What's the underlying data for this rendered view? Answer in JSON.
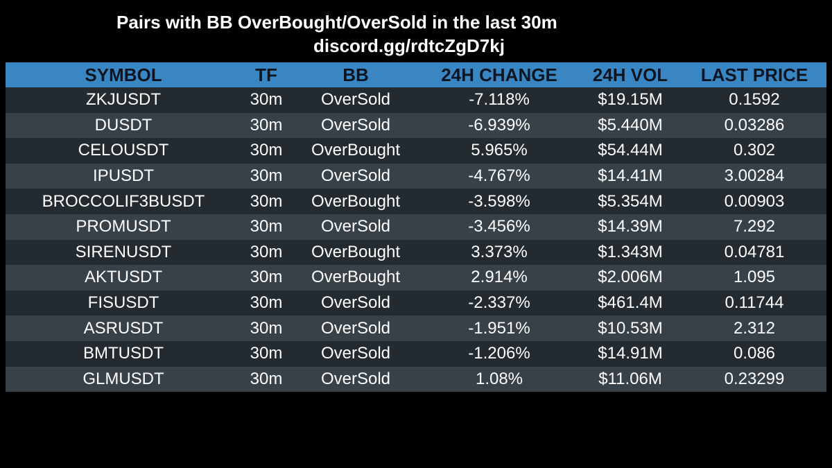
{
  "title": "Pairs with BB OverBought/OverSold in the last 30m",
  "subtitle": "discord.gg/rdtcZgD7kj",
  "colors": {
    "background": "#000000",
    "header_bg": "#3a86c3",
    "header_text": "#0d1620",
    "row_dark": "#232b31",
    "row_light": "#384148",
    "text": "#ffffff"
  },
  "table": {
    "headers": [
      "SYMBOL",
      "TF",
      "BB",
      "24H CHANGE",
      "24H VOL",
      "LAST PRICE"
    ],
    "rows": [
      [
        "ZKJUSDT",
        "30m",
        "OverSold",
        "-7.118%",
        "$19.15M",
        "0.1592"
      ],
      [
        "DUSDT",
        "30m",
        "OverSold",
        "-6.939%",
        "$5.440M",
        "0.03286"
      ],
      [
        "CELOUSDT",
        "30m",
        "OverBought",
        "5.965%",
        "$54.44M",
        "0.302"
      ],
      [
        "IPUSDT",
        "30m",
        "OverSold",
        "-4.767%",
        "$14.41M",
        "3.00284"
      ],
      [
        "BROCCOLIF3BUSDT",
        "30m",
        "OverBought",
        "-3.598%",
        "$5.354M",
        "0.00903"
      ],
      [
        "PROMUSDT",
        "30m",
        "OverSold",
        "-3.456%",
        "$14.39M",
        "7.292"
      ],
      [
        "SIRENUSDT",
        "30m",
        "OverBought",
        "3.373%",
        "$1.343M",
        "0.04781"
      ],
      [
        "AKTUSDT",
        "30m",
        "OverBought",
        "2.914%",
        "$2.006M",
        "1.095"
      ],
      [
        "FISUSDT",
        "30m",
        "OverSold",
        "-2.337%",
        "$461.4M",
        "0.11744"
      ],
      [
        "ASRUSDT",
        "30m",
        "OverSold",
        "-1.951%",
        "$10.53M",
        "2.312"
      ],
      [
        "BMTUSDT",
        "30m",
        "OverSold",
        "-1.206%",
        "$14.91M",
        "0.086"
      ],
      [
        "GLMUSDT",
        "30m",
        "OverSold",
        "1.08%",
        "$11.06M",
        "0.23299"
      ]
    ]
  }
}
